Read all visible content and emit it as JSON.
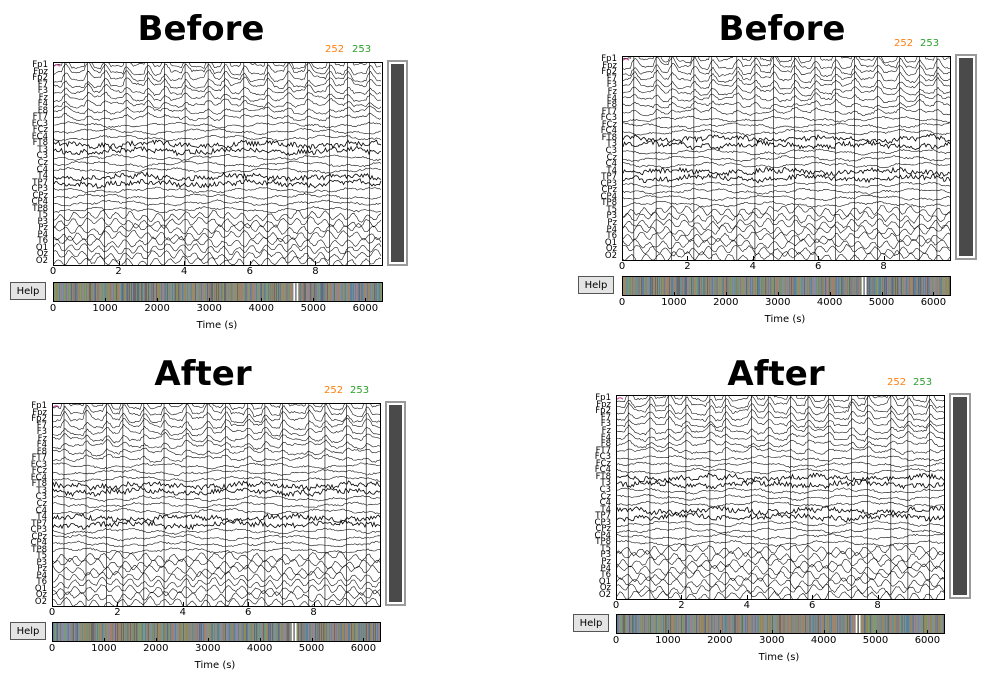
{
  "colors": {
    "event_1": "#ff7f0e",
    "event_2": "#2ca02c",
    "scroll_thumb": "#4a4a4a",
    "annot": "#c0398f"
  },
  "channel_names": [
    "Fp1",
    "Fpz",
    "Fp2",
    "F7",
    "F3",
    "Fz",
    "F4",
    "F8",
    "FT7",
    "FC3",
    "FCz",
    "FC4",
    "FT8",
    "T3",
    "C3",
    "Cz",
    "C4",
    "T4",
    "TP7",
    "CP3",
    "CPz",
    "CP4",
    "TP8",
    "T5",
    "P3",
    "Pz",
    "P4",
    "T6",
    "O1",
    "Oz",
    "O2"
  ],
  "time_ticks": [
    "0",
    "2",
    "4",
    "6",
    "8"
  ],
  "overview_ticks": [
    "0",
    "1000",
    "2000",
    "3000",
    "4000",
    "5000",
    "6000"
  ],
  "xlabel": "Time (s)",
  "help_label": "Help",
  "panels": [
    {
      "title": "Before",
      "event_labels": [
        "252",
        "253"
      ]
    },
    {
      "title": "Before",
      "event_labels": [
        "252",
        "253"
      ]
    },
    {
      "title": "After",
      "event_labels": [
        "252",
        "253"
      ]
    },
    {
      "title": "After",
      "event_labels": [
        "252",
        "253"
      ]
    }
  ]
}
